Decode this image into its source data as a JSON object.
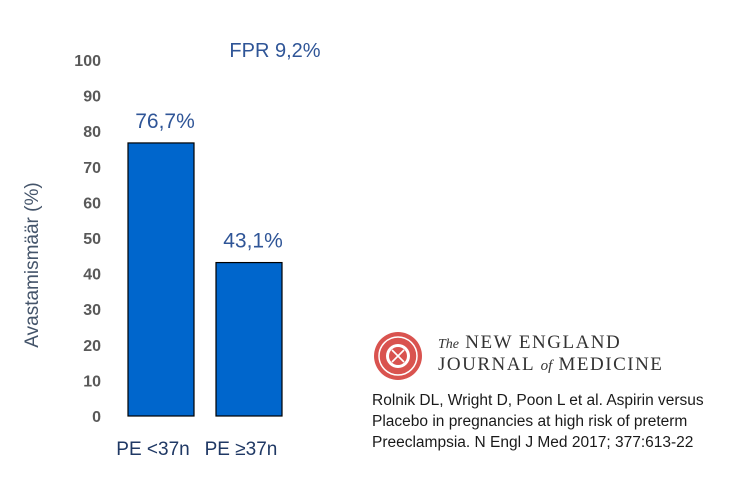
{
  "chart_data": {
    "type": "bar",
    "categories": [
      "PE <37n",
      "PE ≥37n"
    ],
    "values": [
      76.7,
      43.1
    ],
    "data_labels": [
      "76,7%",
      "43,1%"
    ],
    "ylabel": "Avastamismäär (%)",
    "ylim": [
      0,
      100
    ],
    "yticks": [
      "0",
      "10",
      "20",
      "30",
      "40",
      "50",
      "60",
      "70",
      "80",
      "90",
      "100"
    ],
    "annotation": "FPR 9,2%",
    "bar_color": "#0066cc",
    "grid": false
  },
  "journal": {
    "logo_name": "nejm-seal",
    "line1_the": "The",
    "line1_rest": "NEW ENGLAND",
    "line2_a": "JOURNAL",
    "line2_of": "of",
    "line2_b": "MEDICINE"
  },
  "citation": {
    "line1": "Rolnik DL, Wright D, Poon L et al. Aspirin versus",
    "line2": "Placebo in pregnancies at high risk of preterm",
    "line3": "Preeclampsia. N Engl J Med 2017; 377:613-22"
  }
}
